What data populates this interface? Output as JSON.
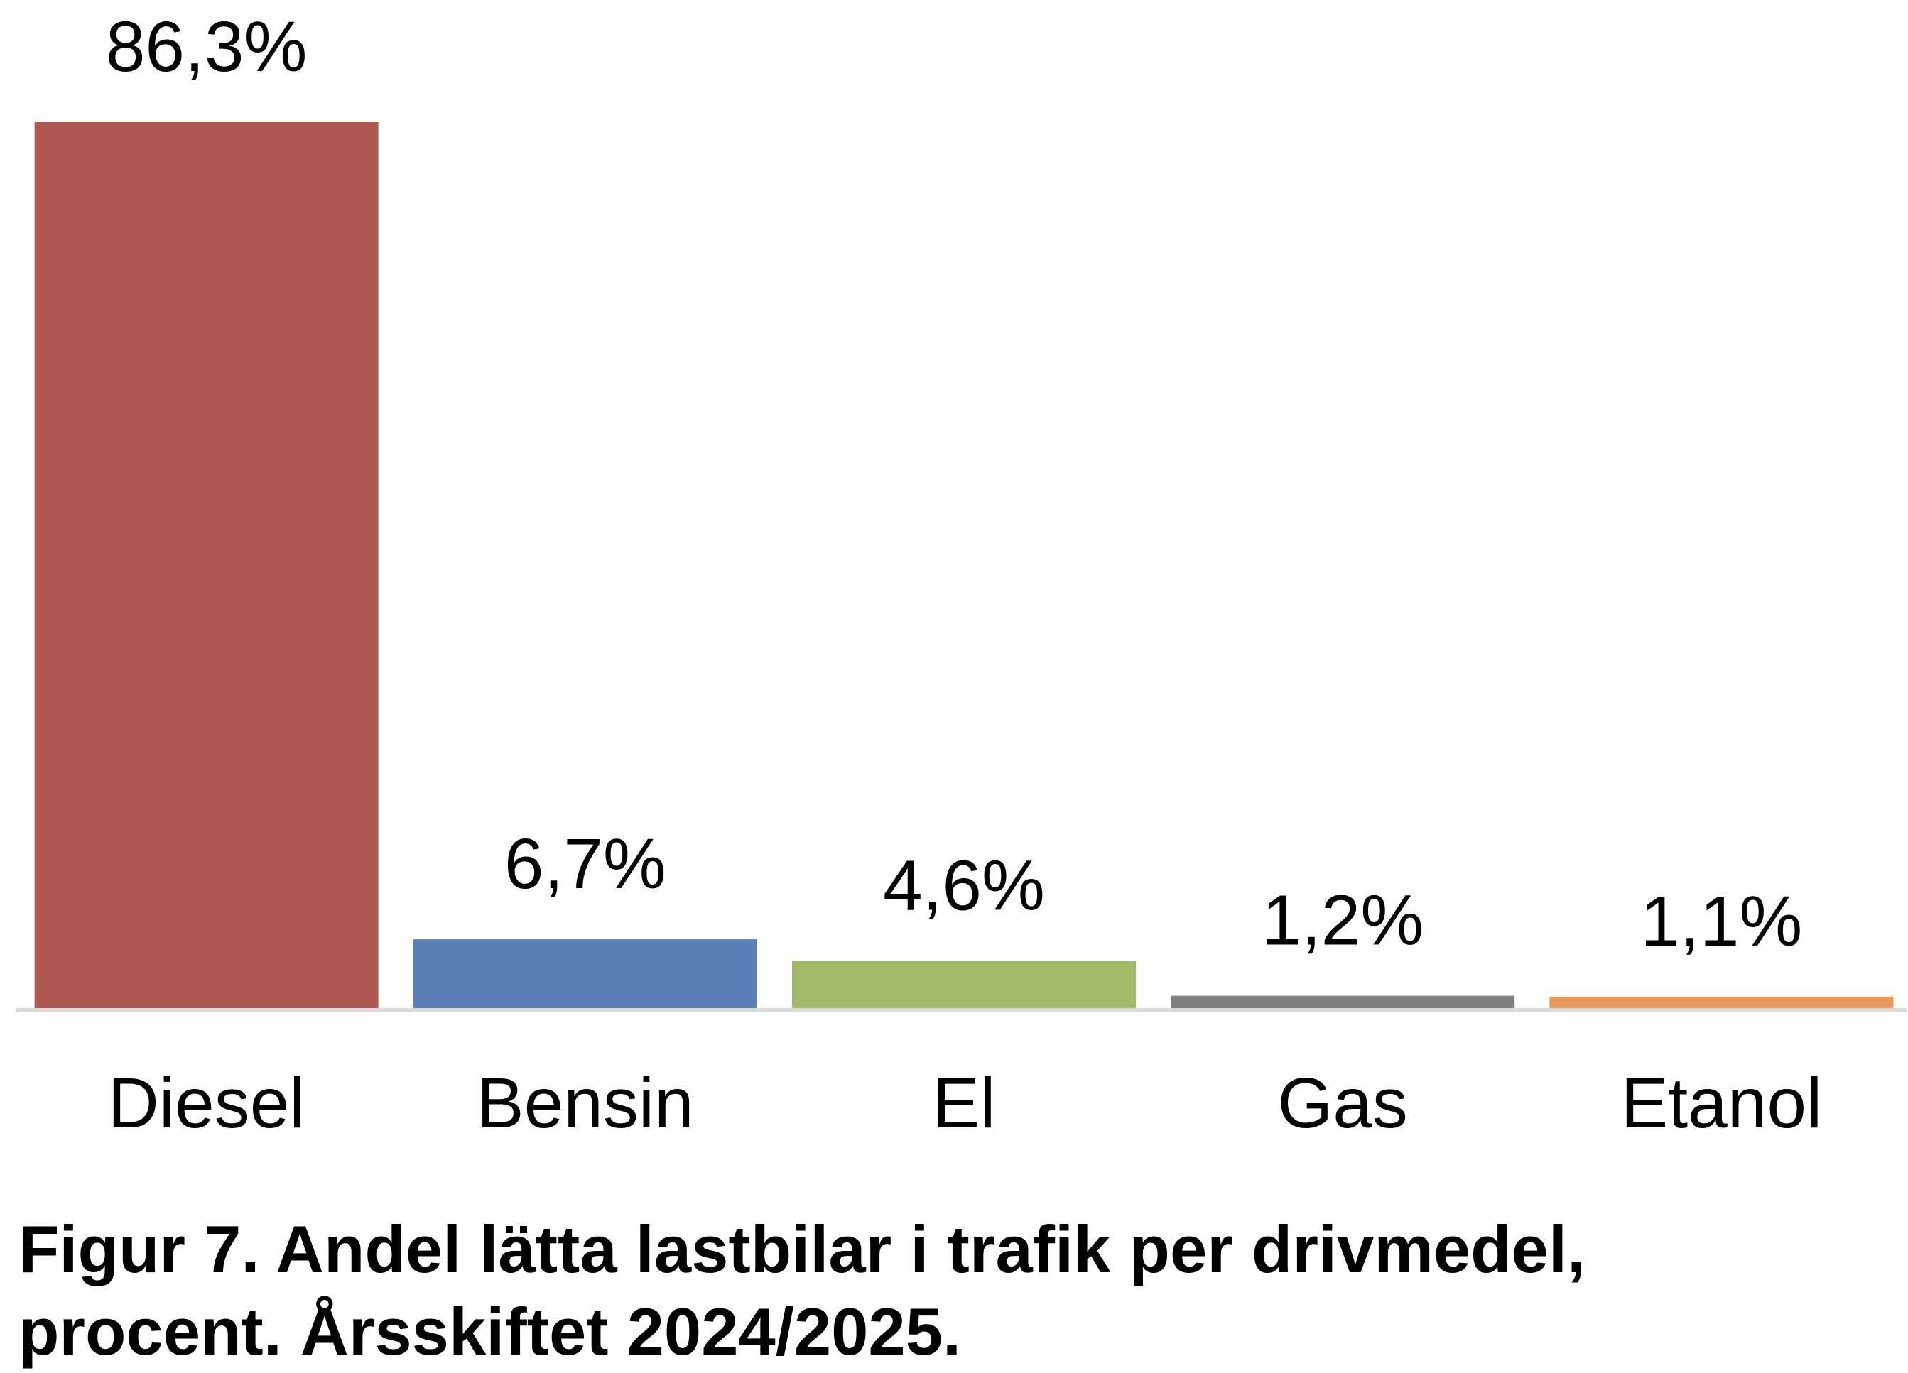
{
  "chart_data": {
    "type": "bar",
    "categories": [
      "Diesel",
      "Bensin",
      "El",
      "Gas",
      "Etanol"
    ],
    "values": [
      86.3,
      6.7,
      4.6,
      1.2,
      1.1
    ],
    "data_labels": [
      "86,3%",
      "6,7%",
      "4,6%",
      "1,2%",
      "1,1%"
    ],
    "colors": [
      "#B05752",
      "#5B7FB7",
      "#A2BA67",
      "#7F7F7F",
      "#E9985A"
    ],
    "axis_color": "#D9D9D9",
    "ylim": [
      0,
      86.3
    ],
    "grid": false,
    "legend": "none"
  },
  "caption": {
    "line1": "Figur 7. Andel lätta lastbilar i trafik per drivmedel,",
    "line2": "procent. Årsskiftet 2024/2025."
  }
}
